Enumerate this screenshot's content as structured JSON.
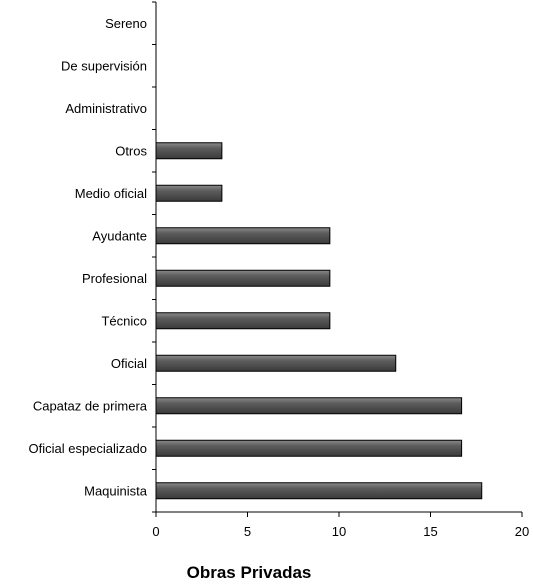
{
  "chart_data": {
    "type": "bar",
    "orientation": "horizontal",
    "categories": [
      "Sereno",
      "De supervisión",
      "Administrativo",
      "Otros",
      "Medio oficial",
      "Ayudante",
      "Profesional",
      "Técnico",
      "Oficial",
      "Capataz de primera",
      "Oficial especializado",
      "Maquinista"
    ],
    "values": [
      0,
      0,
      0,
      3.6,
      3.6,
      9.5,
      9.5,
      9.5,
      13.1,
      16.7,
      16.7,
      17.8
    ],
    "xlabel": "Obras Privadas",
    "xlim": [
      0,
      20
    ],
    "xticks": [
      0,
      5,
      10,
      15,
      20
    ],
    "bar_color": "#555555",
    "grid": false,
    "legend": "none"
  }
}
